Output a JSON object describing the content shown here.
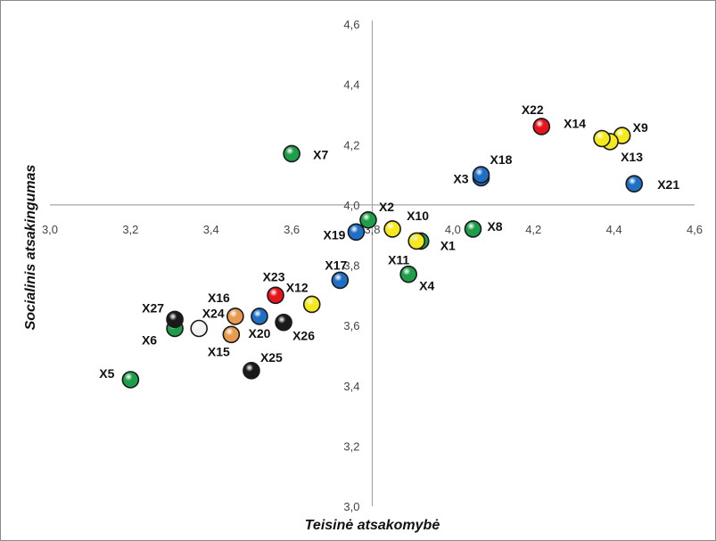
{
  "chart_data": {
    "type": "scatter",
    "xlabel": "Teisinė atsakomybė",
    "ylabel": "Socialinis atsakingumas",
    "xlim": [
      3.0,
      4.6
    ],
    "ylim": [
      3.0,
      4.6
    ],
    "x_ticks": [
      "3,0",
      "3,2",
      "3,4",
      "3,6",
      "3,8",
      "4,0",
      "4,2",
      "4,4",
      "4,6"
    ],
    "y_ticks": [
      "3,0",
      "3,2",
      "3,4",
      "3,6",
      "3,8",
      "4,0",
      "4,2",
      "4,4",
      "4,6"
    ],
    "x_cross": 3.8,
    "y_cross": 4.0,
    "grid": false,
    "legend": "none",
    "colors": {
      "green": "#1f9e4a",
      "blue": "#1f6fc4",
      "yellow": "#f5e81c",
      "red": "#e8141c",
      "black": "#1a1a1a",
      "orange": "#e89a4f",
      "white": "#f2f2f2"
    },
    "points": [
      {
        "label": "X1",
        "x": 3.92,
        "y": 3.88,
        "color": "green"
      },
      {
        "label": "X2",
        "x": 3.79,
        "y": 3.95,
        "color": "green"
      },
      {
        "label": "X3",
        "x": 4.07,
        "y": 4.09,
        "color": "blue"
      },
      {
        "label": "X4",
        "x": 3.89,
        "y": 3.77,
        "color": "green"
      },
      {
        "label": "X5",
        "x": 3.2,
        "y": 3.42,
        "color": "green"
      },
      {
        "label": "X6",
        "x": 3.31,
        "y": 3.59,
        "color": "green"
      },
      {
        "label": "X7",
        "x": 3.6,
        "y": 4.17,
        "color": "green"
      },
      {
        "label": "X8",
        "x": 4.05,
        "y": 3.92,
        "color": "green"
      },
      {
        "label": "X9",
        "x": 4.42,
        "y": 4.23,
        "color": "yellow"
      },
      {
        "label": "X10",
        "x": 3.85,
        "y": 3.92,
        "color": "yellow"
      },
      {
        "label": "X11",
        "x": 3.91,
        "y": 3.88,
        "color": "yellow"
      },
      {
        "label": "X12",
        "x": 3.65,
        "y": 3.67,
        "color": "yellow"
      },
      {
        "label": "X13",
        "x": 4.39,
        "y": 4.21,
        "color": "yellow"
      },
      {
        "label": "X14",
        "x": 4.37,
        "y": 4.22,
        "color": "yellow"
      },
      {
        "label": "X15",
        "x": 3.45,
        "y": 3.57,
        "color": "orange"
      },
      {
        "label": "X16",
        "x": 3.46,
        "y": 3.63,
        "color": "orange"
      },
      {
        "label": "X17",
        "x": 3.72,
        "y": 3.75,
        "color": "blue"
      },
      {
        "label": "X18",
        "x": 4.07,
        "y": 4.1,
        "color": "blue"
      },
      {
        "label": "X19",
        "x": 3.76,
        "y": 3.91,
        "color": "blue"
      },
      {
        "label": "X20",
        "x": 3.52,
        "y": 3.63,
        "color": "blue"
      },
      {
        "label": "X21",
        "x": 4.45,
        "y": 4.07,
        "color": "blue"
      },
      {
        "label": "X22",
        "x": 4.22,
        "y": 4.26,
        "color": "red"
      },
      {
        "label": "X23",
        "x": 3.56,
        "y": 3.7,
        "color": "red"
      },
      {
        "label": "X24",
        "x": 3.37,
        "y": 3.59,
        "color": "white"
      },
      {
        "label": "X25",
        "x": 3.5,
        "y": 3.45,
        "color": "black"
      },
      {
        "label": "X26",
        "x": 3.58,
        "y": 3.61,
        "color": "black"
      },
      {
        "label": "X27",
        "x": 3.31,
        "y": 3.62,
        "color": "black"
      }
    ]
  }
}
